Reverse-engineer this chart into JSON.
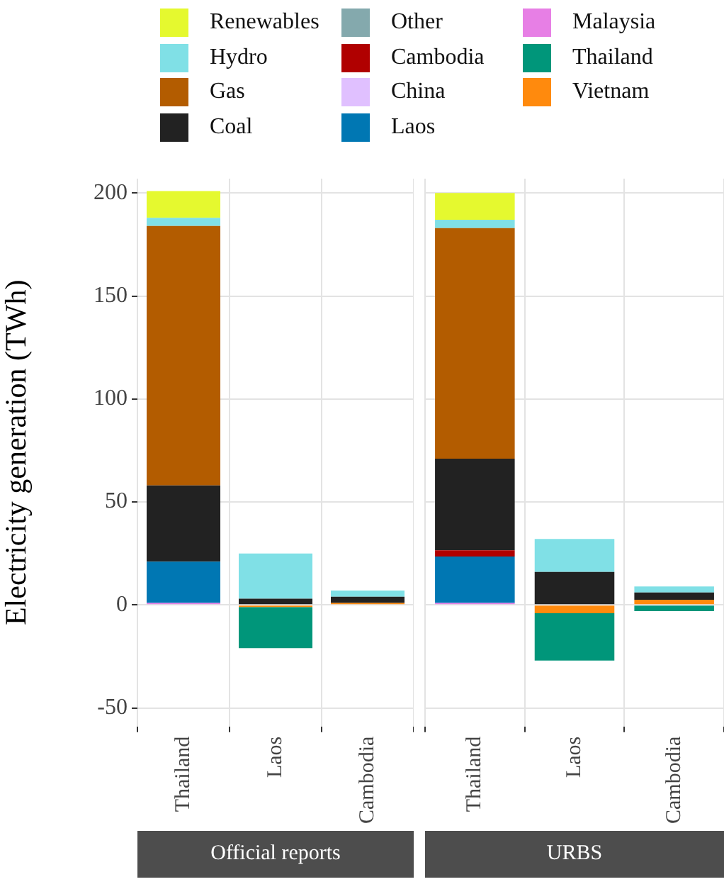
{
  "chart_data": [
    {
      "type": "bar",
      "title": "Official reports",
      "ylabel": "Electricity generation (TWh)",
      "categories": [
        "Thailand",
        "Laos",
        "Cambodia"
      ],
      "stacked": true,
      "ylim": [
        -59,
        207
      ],
      "yticks": [
        -50,
        0,
        50,
        100,
        150,
        200
      ],
      "grid": true,
      "legend": "top",
      "series": [
        {
          "name": "Vietnam",
          "color": "#ff8a0d",
          "values": [
            null,
            -1,
            1
          ]
        },
        {
          "name": "Thailand",
          "color": "#00967a",
          "values": [
            null,
            -20,
            null
          ]
        },
        {
          "name": "Malaysia",
          "color": "#e77fe5",
          "values": [
            1,
            null,
            null
          ]
        },
        {
          "name": "Laos",
          "color": "#0077b3",
          "values": [
            20,
            null,
            null
          ]
        },
        {
          "name": "China",
          "color": "#e0c0ff",
          "values": [
            null,
            null,
            null
          ]
        },
        {
          "name": "Cambodia",
          "color": "#b00000",
          "values": [
            null,
            null,
            null
          ]
        },
        {
          "name": "Other",
          "color": "#84a9ad",
          "values": [
            null,
            null,
            null
          ]
        },
        {
          "name": "Coal",
          "color": "#222222",
          "values": [
            37,
            3,
            3
          ]
        },
        {
          "name": "Gas",
          "color": "#b35c00",
          "values": [
            126,
            null,
            null
          ]
        },
        {
          "name": "Hydro",
          "color": "#80e0e6",
          "values": [
            4,
            22,
            3
          ]
        },
        {
          "name": "Renewables",
          "color": "#e5f92f",
          "values": [
            13,
            null,
            null
          ]
        }
      ]
    },
    {
      "type": "bar",
      "title": "URBS",
      "categories": [
        "Thailand",
        "Laos",
        "Cambodia"
      ],
      "stacked": true,
      "ylim": [
        -59,
        207
      ],
      "yticks": [
        -50,
        0,
        50,
        100,
        150,
        200
      ],
      "grid": true,
      "tick_labels": "x",
      "series": [
        {
          "color": "#ff8a0d",
          "values": [
            null,
            -4,
            2.5
          ]
        },
        {
          "color": "#00967a",
          "values": [
            null,
            -23,
            -3
          ]
        },
        {
          "color": "#e77fe5",
          "values": [
            1,
            null,
            null
          ]
        },
        {
          "color": "#0077b3",
          "values": [
            22.5,
            null,
            null
          ]
        },
        {
          "color": "#b00000",
          "values": [
            3,
            null,
            null
          ]
        },
        {
          "color": "#222222",
          "values": [
            44.5,
            16,
            3.5
          ]
        },
        {
          "color": "#b35c00",
          "values": [
            112,
            null,
            null
          ]
        },
        {
          "color": "#80e0e6",
          "values": [
            4,
            16,
            3
          ]
        },
        {
          "color": "#e5f92f",
          "values": [
            13,
            null,
            null
          ]
        }
      ]
    }
  ]
}
